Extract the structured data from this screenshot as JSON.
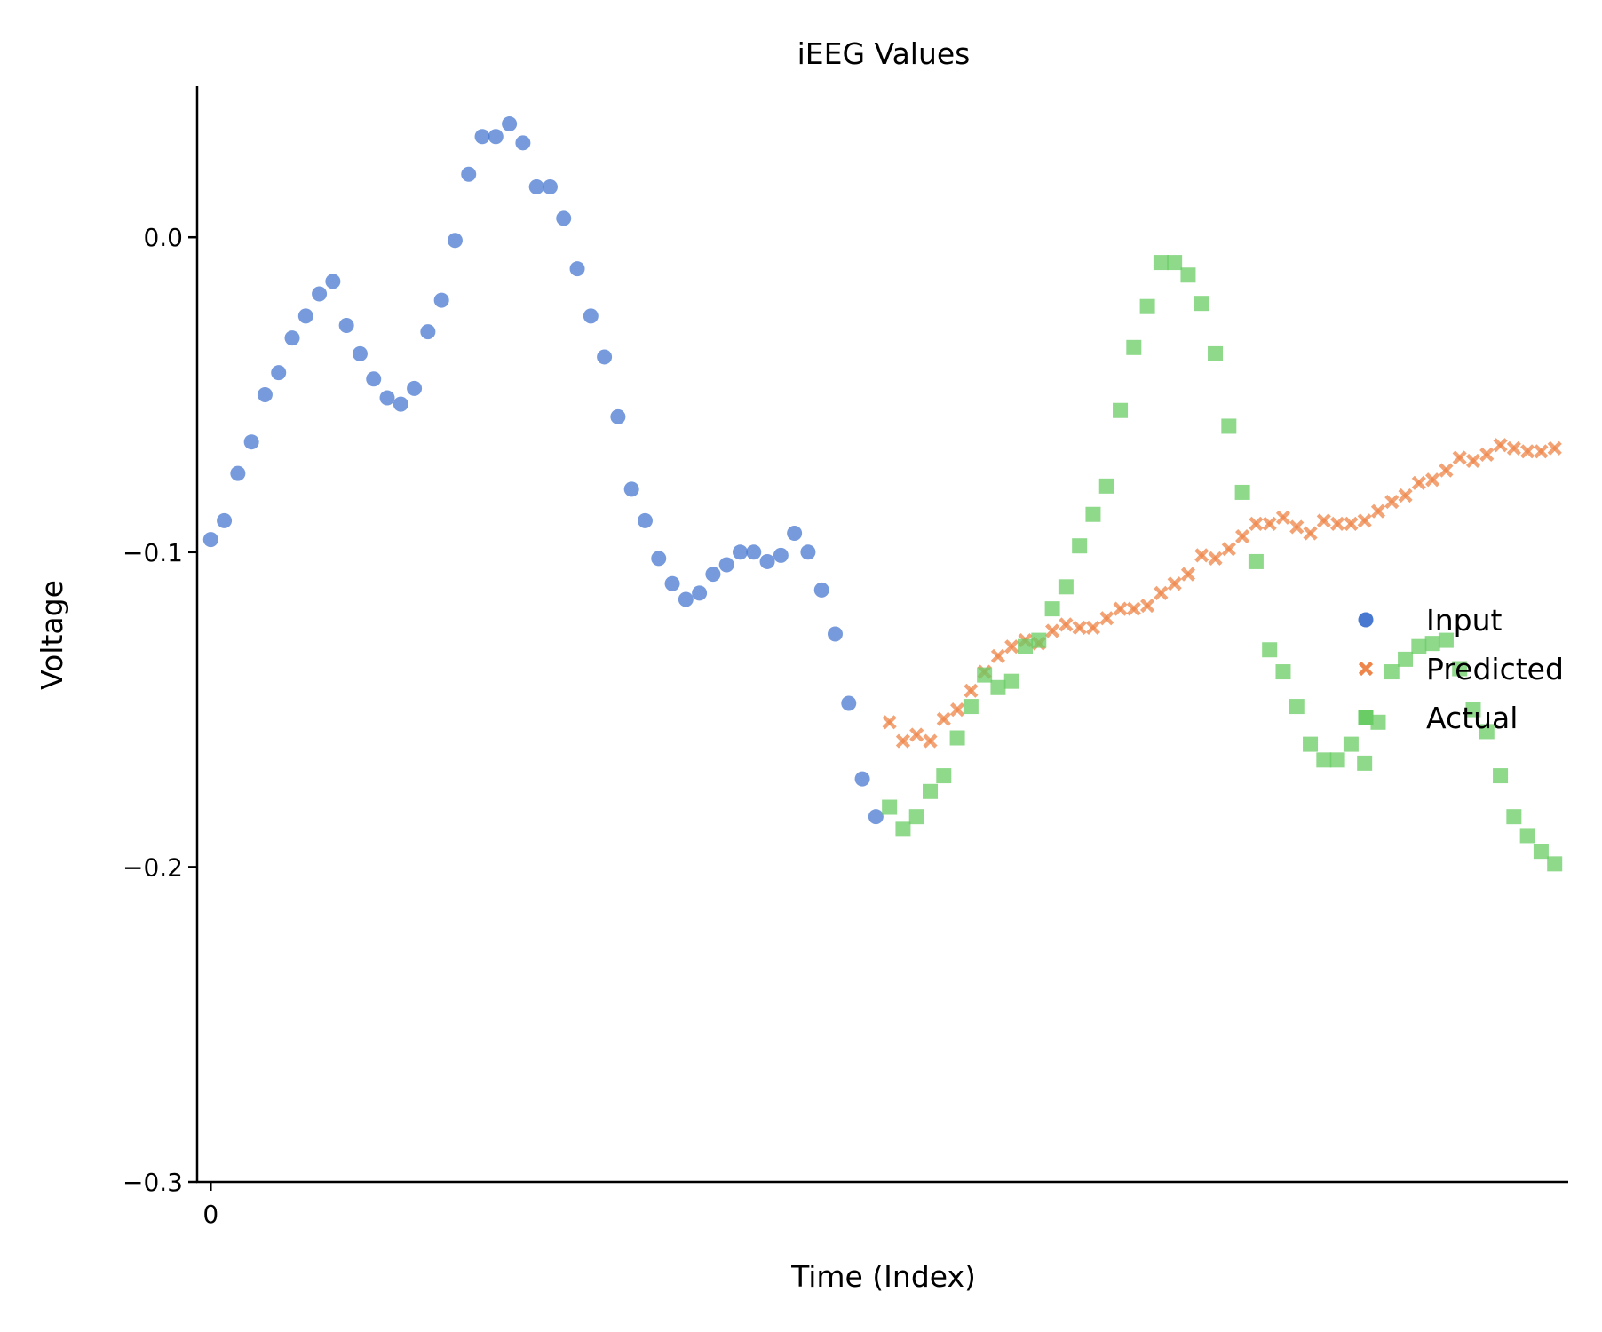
{
  "chart_data": {
    "type": "scatter",
    "title": "iEEG Values",
    "xlabel": "Time (Index)",
    "ylabel": "Voltage",
    "ylim": [
      -0.3,
      0.048
    ],
    "xlim": [
      -1,
      100
    ],
    "yticks": [
      {
        "value": 0.0,
        "label": "0.0"
      },
      {
        "value": -0.1,
        "label": "−0.1"
      },
      {
        "value": -0.2,
        "label": "−0.2"
      },
      {
        "value": -0.3,
        "label": "−0.3"
      }
    ],
    "xticks": [
      {
        "value": 0,
        "label": "0"
      }
    ],
    "grid": false,
    "legend_position": "right",
    "series": [
      {
        "name": "Input",
        "marker": "circle",
        "color": "#4878d0",
        "x": [
          0,
          1,
          2,
          3,
          4,
          5,
          6,
          7,
          8,
          9,
          10,
          11,
          12,
          13,
          14,
          15,
          16,
          17,
          18,
          19,
          20,
          21,
          22,
          23,
          24,
          25,
          26,
          27,
          28,
          29,
          30,
          31,
          32,
          33,
          34,
          35,
          36,
          37,
          38,
          39,
          40,
          41,
          42,
          43,
          44,
          45,
          46,
          47,
          48,
          49
        ],
        "y": [
          -0.096,
          -0.09,
          -0.075,
          -0.065,
          -0.05,
          -0.043,
          -0.032,
          -0.025,
          -0.018,
          -0.014,
          -0.028,
          -0.037,
          -0.045,
          -0.051,
          -0.053,
          -0.048,
          -0.03,
          -0.02,
          -0.001,
          0.02,
          0.032,
          0.032,
          0.036,
          0.03,
          0.016,
          0.016,
          0.006,
          -0.01,
          -0.025,
          -0.038,
          -0.057,
          -0.08,
          -0.09,
          -0.102,
          -0.11,
          -0.115,
          -0.113,
          -0.107,
          -0.104,
          -0.1,
          -0.1,
          -0.103,
          -0.101,
          -0.094,
          -0.1,
          -0.112,
          -0.126,
          -0.148,
          -0.172,
          -0.184
        ]
      },
      {
        "name": "Predicted",
        "marker": "x",
        "color": "#ee854a",
        "x": [
          50,
          51,
          52,
          53,
          54,
          55,
          56,
          57,
          58,
          59,
          60,
          61,
          62,
          63,
          64,
          65,
          66,
          67,
          68,
          69,
          70,
          71,
          72,
          73,
          74,
          75,
          76,
          77,
          78,
          79,
          80,
          81,
          82,
          83,
          84,
          85,
          86,
          87,
          88,
          89,
          90,
          91,
          92,
          93,
          94,
          95,
          96,
          97,
          98,
          99
        ],
        "y": [
          -0.154,
          -0.16,
          -0.158,
          -0.16,
          -0.153,
          -0.15,
          -0.144,
          -0.138,
          -0.133,
          -0.13,
          -0.128,
          -0.129,
          -0.125,
          -0.123,
          -0.124,
          -0.124,
          -0.121,
          -0.118,
          -0.118,
          -0.117,
          -0.113,
          -0.11,
          -0.107,
          -0.101,
          -0.102,
          -0.099,
          -0.095,
          -0.091,
          -0.091,
          -0.089,
          -0.092,
          -0.094,
          -0.09,
          -0.091,
          -0.091,
          -0.09,
          -0.087,
          -0.084,
          -0.082,
          -0.078,
          -0.077,
          -0.074,
          -0.07,
          -0.071,
          -0.069,
          -0.066,
          -0.067,
          -0.068,
          -0.068,
          -0.067
        ]
      },
      {
        "name": "Actual",
        "marker": "square",
        "color": "#6acc64",
        "x": [
          50,
          51,
          52,
          53,
          54,
          55,
          56,
          57,
          58,
          59,
          60,
          61,
          62,
          63,
          64,
          65,
          66,
          67,
          68,
          69,
          70,
          71,
          72,
          73,
          74,
          75,
          76,
          77,
          78,
          79,
          80,
          81,
          82,
          83,
          84,
          85,
          86,
          87,
          88,
          89,
          90,
          91,
          92,
          93,
          94,
          95,
          96,
          97,
          98,
          99
        ],
        "y": [
          -0.181,
          -0.188,
          -0.184,
          -0.176,
          -0.171,
          -0.159,
          -0.149,
          -0.139,
          -0.143,
          -0.141,
          -0.13,
          -0.128,
          -0.118,
          -0.111,
          -0.098,
          -0.088,
          -0.079,
          -0.055,
          -0.035,
          -0.022,
          -0.008,
          -0.008,
          -0.012,
          -0.021,
          -0.037,
          -0.06,
          -0.081,
          -0.103,
          -0.131,
          -0.138,
          -0.149,
          -0.161,
          -0.166,
          -0.166,
          -0.161,
          -0.167,
          -0.154,
          -0.138,
          -0.134,
          -0.13,
          -0.129,
          -0.128,
          -0.137,
          -0.15,
          -0.157,
          -0.171,
          -0.184,
          -0.19,
          -0.195,
          -0.199
        ]
      }
    ]
  }
}
